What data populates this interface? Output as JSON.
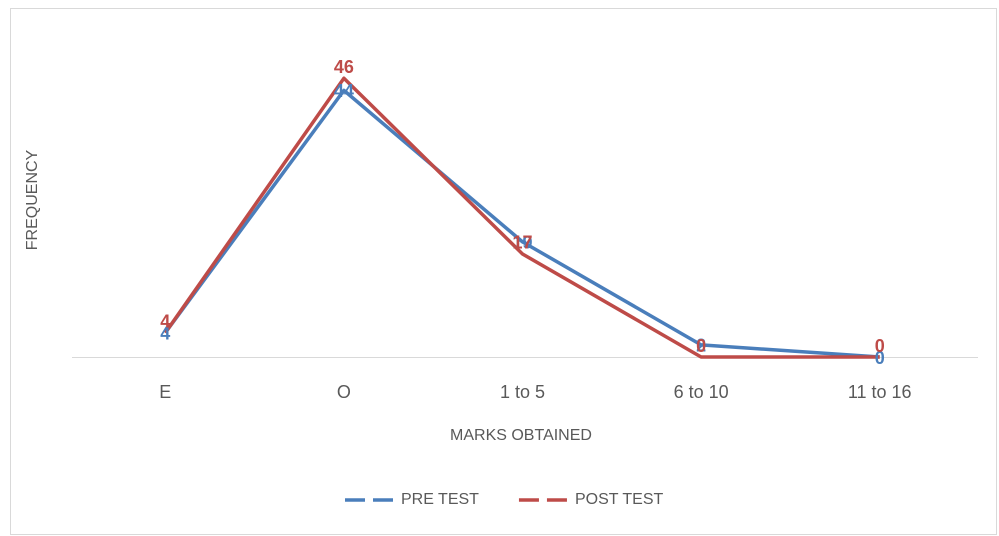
{
  "chart_data": {
    "type": "line",
    "categories": [
      "E",
      "O",
      "1 to 5",
      "6 to 10",
      "11 to 16"
    ],
    "series": [
      {
        "name": "PRE TEST",
        "color": "#4a7ebb",
        "values": [
          4,
          44,
          19,
          2,
          0
        ]
      },
      {
        "name": "POST TEST",
        "color": "#be4b48",
        "values": [
          4,
          46,
          17,
          0,
          0
        ]
      }
    ],
    "xlabel": "MARKS OBTAINED",
    "ylabel": "FREQUENCY",
    "ylim": [
      0,
      50
    ],
    "legend": "bottom",
    "data_labels": true
  }
}
